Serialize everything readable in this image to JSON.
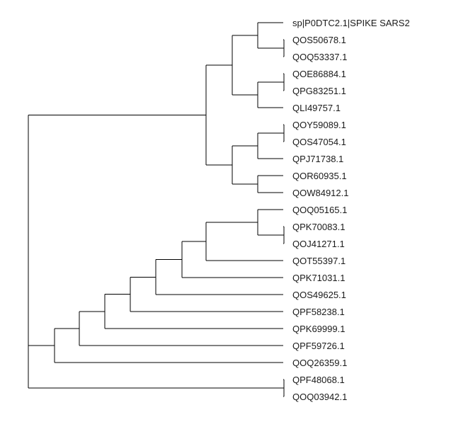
{
  "tree": {
    "leaves": [
      {
        "id": "l1",
        "label": "sp|P0DTC2.1|SPIKE SARS2"
      },
      {
        "id": "l2",
        "label": "QOS50678.1"
      },
      {
        "id": "l3",
        "label": "QOQ53337.1"
      },
      {
        "id": "l4",
        "label": "QOE86884.1"
      },
      {
        "id": "l5",
        "label": "QPG83251.1"
      },
      {
        "id": "l6",
        "label": "QLI49757.1"
      },
      {
        "id": "l7",
        "label": "QOY59089.1"
      },
      {
        "id": "l8",
        "label": "QOS47054.1"
      },
      {
        "id": "l9",
        "label": "QPJ71738.1"
      },
      {
        "id": "l10",
        "label": "QOR60935.1"
      },
      {
        "id": "l11",
        "label": "QOW84912.1"
      },
      {
        "id": "l12",
        "label": "QOQ05165.1"
      },
      {
        "id": "l13",
        "label": "QPK70083.1"
      },
      {
        "id": "l14",
        "label": "QOJ41271.1"
      },
      {
        "id": "l15",
        "label": "QOT55397.1"
      },
      {
        "id": "l16",
        "label": "QPK71031.1"
      },
      {
        "id": "l17",
        "label": "QOS49625.1"
      },
      {
        "id": "l18",
        "label": "QPF58238.1"
      },
      {
        "id": "l19",
        "label": "QPK69999.1"
      },
      {
        "id": "l20",
        "label": "QPF59726.1"
      },
      {
        "id": "l21",
        "label": "QOQ26359.1"
      },
      {
        "id": "l22",
        "label": "QPF48068.1"
      },
      {
        "id": "l23",
        "label": "QOQ03942.1"
      }
    ],
    "topology": {
      "id": "root",
      "children": [
        {
          "id": "n_upper",
          "children": [
            {
              "id": "n_a",
              "children": [
                {
                  "id": "n_a1",
                  "children": [
                    {
                      "leaf": "l1"
                    },
                    {
                      "id": "n_a1b",
                      "children": [
                        {
                          "leaf": "l2"
                        },
                        {
                          "leaf": "l3"
                        }
                      ]
                    }
                  ]
                },
                {
                  "id": "n_a2",
                  "children": [
                    {
                      "id": "n_a2a",
                      "children": [
                        {
                          "leaf": "l4"
                        },
                        {
                          "leaf": "l5"
                        }
                      ]
                    },
                    {
                      "leaf": "l6"
                    }
                  ]
                }
              ]
            },
            {
              "id": "n_b",
              "children": [
                {
                  "id": "n_b1",
                  "children": [
                    {
                      "id": "n_b1a",
                      "children": [
                        {
                          "leaf": "l7"
                        },
                        {
                          "leaf": "l8"
                        }
                      ]
                    },
                    {
                      "leaf": "l9"
                    }
                  ]
                },
                {
                  "id": "n_b2",
                  "children": [
                    {
                      "leaf": "l10"
                    },
                    {
                      "leaf": "l11"
                    }
                  ]
                }
              ]
            }
          ]
        },
        {
          "id": "n_lower",
          "children": [
            {
              "id": "n_l1",
              "children": [
                {
                  "id": "n_l2",
                  "children": [
                    {
                      "id": "n_l3",
                      "children": [
                        {
                          "id": "n_l4",
                          "children": [
                            {
                              "id": "n_l5",
                              "children": [
                                {
                                  "id": "n_l6",
                                  "children": [
                                    {
                                      "id": "n_l7",
                                      "children": [
                                        {
                                          "leaf": "l12"
                                        },
                                        {
                                          "id": "n_l7b",
                                          "children": [
                                            {
                                              "leaf": "l13"
                                            },
                                            {
                                              "leaf": "l14"
                                            }
                                          ]
                                        }
                                      ]
                                    },
                                    {
                                      "leaf": "l15"
                                    }
                                  ]
                                },
                                {
                                  "leaf": "l16"
                                }
                              ]
                            },
                            {
                              "leaf": "l17"
                            }
                          ]
                        },
                        {
                          "leaf": "l18"
                        }
                      ]
                    },
                    {
                      "leaf": "l19"
                    }
                  ]
                },
                {
                  "leaf": "l20"
                }
              ]
            },
            {
              "leaf": "l21"
            }
          ]
        },
        {
          "id": "n_c",
          "children": [
            {
              "leaf": "l22"
            },
            {
              "leaf": "l23"
            }
          ]
        }
      ]
    }
  }
}
